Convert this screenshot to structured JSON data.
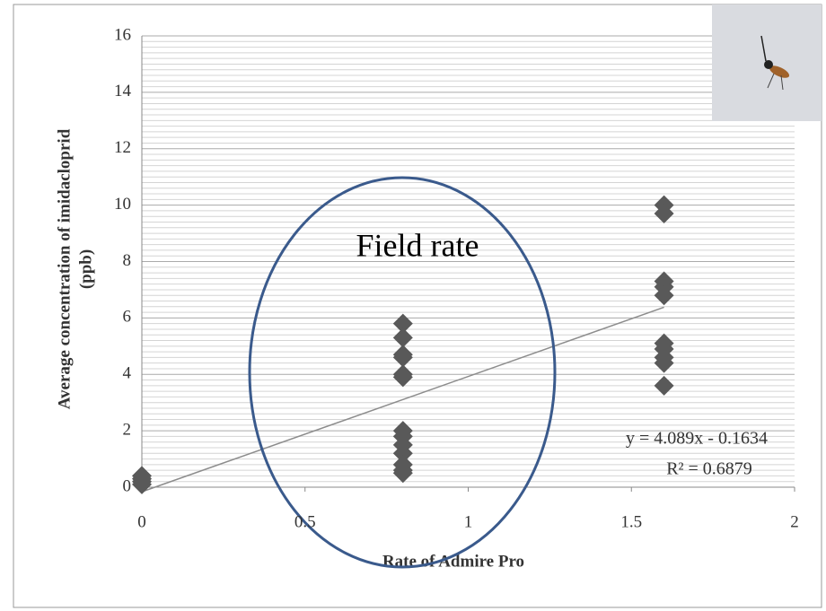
{
  "chart_data": {
    "type": "scatter",
    "xlabel": "Rate of Admire  Pro",
    "ylabel": [
      "Average concentration of imidacloprid",
      "(ppb)"
    ],
    "x": [
      0,
      0,
      0,
      0,
      0.8,
      0.8,
      0.8,
      0.8,
      0.8,
      0.8,
      0.8,
      0.8,
      0.8,
      0.8,
      0.8,
      0.8,
      0.8,
      1.6,
      1.6,
      1.6,
      1.6,
      1.6,
      1.6,
      1.6,
      1.6,
      1.6,
      1.6
    ],
    "values": [
      0.1,
      0.2,
      0.3,
      0.4,
      5.8,
      5.3,
      4.7,
      4.6,
      4.0,
      3.9,
      2.0,
      1.8,
      1.5,
      1.2,
      0.8,
      0.6,
      0.5,
      10.0,
      9.7,
      7.3,
      7.1,
      6.8,
      5.1,
      4.9,
      4.6,
      4.4,
      3.6
    ],
    "color": "#595959",
    "xlim": [
      0,
      2
    ],
    "xticks": [
      0,
      0.5,
      1,
      1.5,
      2
    ],
    "ylim": [
      0,
      16
    ],
    "yticks": [
      0,
      2,
      4,
      6,
      8,
      10,
      12,
      14,
      16
    ],
    "grid": true,
    "trendline": {
      "slope": 4.089,
      "intercept": -0.1634,
      "color": "#8c8c8c",
      "equation": "y = 4.089x - 0.1634",
      "r_squared": "R² = 0.6879"
    },
    "annotation": "Field rate"
  }
}
